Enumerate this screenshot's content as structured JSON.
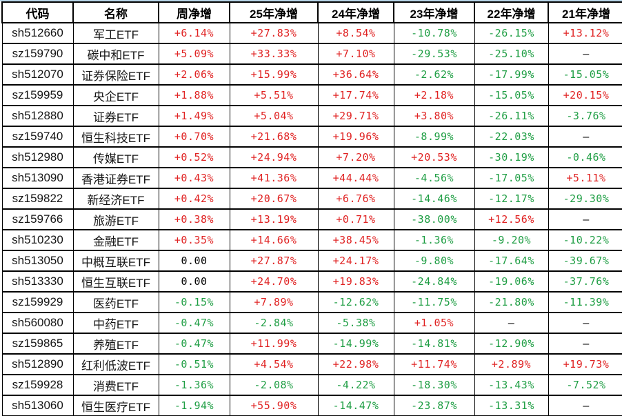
{
  "table": {
    "columns": [
      "代码",
      "名称",
      "周净增",
      "25年净增",
      "24年净增",
      "23年净增",
      "22年净增",
      "21年净增"
    ],
    "rows": [
      [
        "sh512660",
        "军工ETF",
        "+6.14%",
        "+27.83%",
        "+8.54%",
        "-10.78%",
        "-26.15%",
        "+13.12%"
      ],
      [
        "sz159790",
        "碳中和ETF",
        "+5.09%",
        "+33.33%",
        "+7.10%",
        "-29.53%",
        "-25.10%",
        "—"
      ],
      [
        "sh512070",
        "证券保险ETF",
        "+2.06%",
        "+15.99%",
        "+36.64%",
        "-2.62%",
        "-17.99%",
        "-15.05%"
      ],
      [
        "sz159959",
        "央企ETF",
        "+1.88%",
        "+5.51%",
        "+17.74%",
        "+2.18%",
        "-15.05%",
        "+20.15%"
      ],
      [
        "sh512880",
        "证券ETF",
        "+1.49%",
        "+5.04%",
        "+29.71%",
        "+3.80%",
        "-26.11%",
        "-3.76%"
      ],
      [
        "sz159740",
        "恒生科技ETF",
        "+0.70%",
        "+21.68%",
        "+19.96%",
        "-8.99%",
        "-22.03%",
        "—"
      ],
      [
        "sh512980",
        "传媒ETF",
        "+0.52%",
        "+24.94%",
        "+7.20%",
        "+20.53%",
        "-30.19%",
        "-0.46%"
      ],
      [
        "sh513090",
        "香港证券ETF",
        "+0.43%",
        "+41.36%",
        "+44.44%",
        "-4.56%",
        "-17.05%",
        "+5.11%"
      ],
      [
        "sz159822",
        "新经济ETF",
        "+0.42%",
        "+20.67%",
        "+6.76%",
        "-14.46%",
        "-12.17%",
        "-29.30%"
      ],
      [
        "sz159766",
        "旅游ETF",
        "+0.38%",
        "+13.19%",
        "+0.71%",
        "-38.00%",
        "+12.56%",
        "—"
      ],
      [
        "sh510230",
        "金融ETF",
        "+0.35%",
        "+14.66%",
        "+38.45%",
        "-1.36%",
        "-9.20%",
        "-10.22%"
      ],
      [
        "sh513050",
        "中概互联ETF",
        "0.00",
        "+27.87%",
        "+24.17%",
        "-9.80%",
        "-17.64%",
        "-39.67%"
      ],
      [
        "sh513330",
        "恒生互联ETF",
        "0.00",
        "+24.70%",
        "+19.83%",
        "-24.84%",
        "-19.06%",
        "-37.76%"
      ],
      [
        "sz159929",
        "医药ETF",
        "-0.15%",
        "+7.89%",
        "-12.62%",
        "-11.75%",
        "-21.80%",
        "-11.39%"
      ],
      [
        "sh560080",
        "中药ETF",
        "-0.47%",
        "-2.84%",
        "-5.38%",
        "+1.05%",
        "—",
        "—"
      ],
      [
        "sz159865",
        "养殖ETF",
        "-0.47%",
        "+11.99%",
        "-14.99%",
        "-14.81%",
        "-12.90%",
        "—"
      ],
      [
        "sh512890",
        "红利低波ETF",
        "-0.51%",
        "+4.54%",
        "+22.98%",
        "+11.74%",
        "+2.89%",
        "+19.73%"
      ],
      [
        "sz159928",
        "消费ETF",
        "-1.36%",
        "-2.08%",
        "-4.22%",
        "-18.30%",
        "-13.43%",
        "-7.52%"
      ],
      [
        "sh513060",
        "恒生医疗ETF",
        "-1.94%",
        "+55.90%",
        "-14.47%",
        "-23.87%",
        "-13.31%",
        "—"
      ]
    ]
  },
  "colors": {
    "positive": "#e02222",
    "negative": "#1f9e44",
    "neutral": "#000000",
    "border": "#000000",
    "top_strip": "#b9d6ea"
  }
}
